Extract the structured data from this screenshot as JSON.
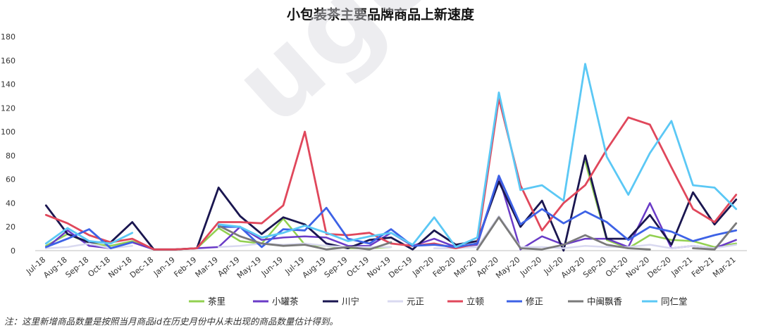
{
  "chart_data": {
    "type": "line",
    "title": "小包装茶主要品牌商品上新速度",
    "footnote": "注：这里新增商品数量是按照当月商品id在历史月份中从未出现的商品数量估计得到。",
    "watermark": "ugone",
    "ylim": [
      0,
      180
    ],
    "yticks": [
      0,
      20,
      40,
      60,
      80,
      100,
      120,
      140,
      160,
      180
    ],
    "grid": false,
    "legend_position": "bottom",
    "categories": [
      "Jul-18",
      "Aug-18",
      "Sep-18",
      "Oct-18",
      "Nov-18",
      "Dec-18",
      "Jan-19",
      "Feb-19",
      "Mar-19",
      "Apr-19",
      "May-19",
      "Jun-19",
      "Jul-19",
      "Aug-19",
      "Sep-19",
      "Oct-19",
      "Nov-19",
      "Dec-19",
      "Jan-20",
      "Feb-20",
      "Mar-20",
      "Apr-20",
      "May-20",
      "Jun-20",
      "Jul-20",
      "Aug-20",
      "Sep-20",
      "Oct-20",
      "Nov-20",
      "Dec-20",
      "Jan-21",
      "Feb-21",
      "Mar-21"
    ],
    "series": [
      {
        "name": "茶里",
        "color": "#92d050",
        "width": 2.5,
        "values": [
          4,
          14,
          6,
          4,
          8,
          1,
          1,
          2,
          19,
          8,
          6,
          27,
          5,
          4,
          2,
          2,
          3,
          null,
          null,
          null,
          null,
          null,
          null,
          null,
          null,
          75,
          9,
          2,
          13,
          9,
          8,
          3,
          6
        ]
      },
      {
        "name": "小罐茶",
        "color": "#6a3bc7",
        "width": 2.5,
        "values": [
          2,
          17,
          4,
          2,
          7,
          1,
          1,
          2,
          3,
          20,
          9,
          11,
          12,
          11,
          4,
          4,
          15,
          4,
          10,
          3,
          5,
          62,
          1,
          12,
          5,
          10,
          10,
          3,
          40,
          2,
          4,
          2,
          9
        ]
      },
      {
        "name": "川宁",
        "color": "#1a1650",
        "width": 2.8,
        "values": [
          38,
          14,
          7,
          7,
          24,
          1,
          1,
          2,
          53,
          29,
          14,
          28,
          22,
          6,
          2,
          9,
          11,
          1,
          17,
          5,
          8,
          58,
          20,
          42,
          0,
          80,
          10,
          10,
          30,
          5,
          49,
          22,
          43
        ]
      },
      {
        "name": "元正",
        "color": "#d9d9f0",
        "width": 2.5,
        "values": [
          2,
          3,
          6,
          2,
          4,
          null,
          null,
          null,
          3,
          4,
          6,
          5,
          6,
          4,
          3,
          3,
          3,
          null,
          2,
          2,
          3,
          29,
          3,
          3,
          2,
          4,
          3,
          3,
          5,
          2,
          4,
          2,
          5
        ]
      },
      {
        "name": "立顿",
        "color": "#e0475b",
        "width": 2.8,
        "values": [
          30,
          23,
          13,
          7,
          10,
          1,
          1,
          2,
          24,
          24,
          23,
          38,
          100,
          14,
          13,
          15,
          6,
          4,
          6,
          2,
          6,
          128,
          55,
          17,
          40,
          55,
          85,
          112,
          106,
          70,
          35,
          24,
          47
        ]
      },
      {
        "name": "修正",
        "color": "#3d62e6",
        "width": 2.8,
        "values": [
          3,
          10,
          18,
          2,
          7,
          null,
          null,
          null,
          20,
          20,
          3,
          18,
          17,
          36,
          10,
          6,
          18,
          4,
          5,
          3,
          6,
          63,
          22,
          35,
          23,
          33,
          24,
          9,
          20,
          16,
          8,
          13,
          17
        ]
      },
      {
        "name": "中闽飘香",
        "color": "#7a7a7a",
        "width": 2.8,
        "values": [
          null,
          null,
          null,
          null,
          null,
          null,
          null,
          null,
          21,
          12,
          6,
          4,
          5,
          1,
          3,
          1,
          7,
          null,
          null,
          null,
          1,
          28,
          2,
          1,
          5,
          13,
          5,
          2,
          1,
          null,
          2,
          1,
          23
        ]
      },
      {
        "name": "同仁堂",
        "color": "#5bc8f5",
        "width": 2.8,
        "values": [
          6,
          19,
          8,
          6,
          15,
          null,
          null,
          null,
          22,
          20,
          11,
          15,
          21,
          15,
          8,
          12,
          15,
          5,
          28,
          3,
          11,
          133,
          51,
          55,
          42,
          157,
          79,
          47,
          82,
          109,
          55,
          53,
          35
        ]
      }
    ]
  }
}
